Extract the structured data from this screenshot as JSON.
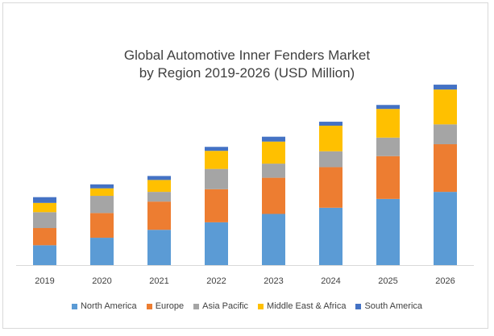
{
  "chart_data": {
    "type": "bar",
    "stacked": true,
    "title_line1": "Global Automotive Inner Fenders Market",
    "title_line2": "by Region 2019-2026 (USD Million)",
    "xlabel": "",
    "ylabel": "",
    "ylim": [
      0,
      200
    ],
    "grid": false,
    "legend_position": "bottom",
    "categories": [
      "2019",
      "2020",
      "2021",
      "2022",
      "2023",
      "2024",
      "2025",
      "2026"
    ],
    "series": [
      {
        "name": "North America",
        "color": "#5b9bd5",
        "values": [
          22.5,
          31,
          40,
          48.5,
          58,
          65,
          75,
          83
        ]
      },
      {
        "name": "Europe",
        "color": "#ed7d31",
        "values": [
          19.5,
          28,
          32,
          37.5,
          41,
          46,
          48.5,
          54
        ]
      },
      {
        "name": "Asia Pacific",
        "color": "#a5a5a5",
        "values": [
          18,
          19.5,
          11,
          23,
          16,
          18,
          21,
          22.5
        ]
      },
      {
        "name": "Middle East & Africa",
        "color": "#ffc000",
        "values": [
          10.5,
          8.5,
          13.5,
          20.5,
          25,
          29,
          32.5,
          39.5
        ]
      },
      {
        "name": "South America",
        "color": "#4472c4",
        "values": [
          6.5,
          4.5,
          4.5,
          4.5,
          5.5,
          4.5,
          4.5,
          5.5
        ]
      }
    ]
  }
}
